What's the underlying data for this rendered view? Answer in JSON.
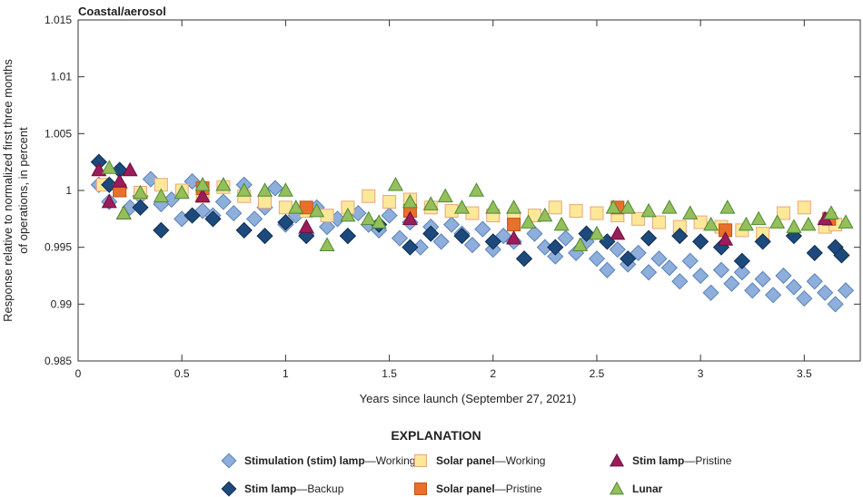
{
  "chart_data": {
    "type": "scatter",
    "title": "Coastal/aerosol",
    "xlabel": "Years since launch (September 27, 2021)",
    "ylabel": [
      "Response relative to normalized first three months",
      "of operations, in percent"
    ],
    "xlim": [
      0,
      3.77
    ],
    "ylim": [
      0.985,
      1.015
    ],
    "xticks": [
      0,
      0.5,
      1,
      1.5,
      2,
      2.5,
      3,
      3.5
    ],
    "xtick_labels": [
      "0",
      "0.5",
      "1",
      "1.5",
      "2",
      "2.5",
      "3",
      "3.5"
    ],
    "yticks": [
      0.985,
      0.99,
      0.995,
      1,
      1.005,
      1.01,
      1.015
    ],
    "ytick_labels": [
      "0.985",
      "0.99",
      "0.995",
      "1",
      "1.005",
      "1.01",
      "1.015"
    ],
    "grid": false,
    "legend_title": "EXPLANATION",
    "legend_placement": "bottom",
    "series": [
      {
        "key": "stim_working",
        "bold": "Stimulation (stim) lamp",
        "rest": "—Working",
        "marker": "diamond",
        "fill": "#8eaedb",
        "stroke": "#5b82b8",
        "points": [
          [
            0.1,
            1.0005
          ],
          [
            0.15,
            0.999
          ],
          [
            0.2,
            1.0002
          ],
          [
            0.25,
            0.9985
          ],
          [
            0.3,
            0.9995
          ],
          [
            0.35,
            1.001
          ],
          [
            0.4,
            0.9988
          ],
          [
            0.45,
            0.9992
          ],
          [
            0.5,
            0.9975
          ],
          [
            0.55,
            1.0008
          ],
          [
            0.6,
            0.9982
          ],
          [
            0.65,
            0.9978
          ],
          [
            0.7,
            0.999
          ],
          [
            0.75,
            0.998
          ],
          [
            0.8,
            1.0005
          ],
          [
            0.85,
            0.9975
          ],
          [
            0.9,
            0.9985
          ],
          [
            0.95,
            1.0002
          ],
          [
            1.0,
            0.997
          ],
          [
            1.05,
            0.9978
          ],
          [
            1.1,
            0.9962
          ],
          [
            1.15,
            0.9985
          ],
          [
            1.2,
            0.9968
          ],
          [
            1.25,
            0.9975
          ],
          [
            1.3,
            0.996
          ],
          [
            1.35,
            0.998
          ],
          [
            1.4,
            0.997
          ],
          [
            1.45,
            0.9965
          ],
          [
            1.5,
            0.9978
          ],
          [
            1.55,
            0.9958
          ],
          [
            1.6,
            0.9972
          ],
          [
            1.65,
            0.995
          ],
          [
            1.7,
            0.9968
          ],
          [
            1.75,
            0.9955
          ],
          [
            1.8,
            0.997
          ],
          [
            1.85,
            0.9962
          ],
          [
            1.9,
            0.9952
          ],
          [
            1.95,
            0.9966
          ],
          [
            2.0,
            0.9948
          ],
          [
            2.05,
            0.996
          ],
          [
            2.1,
            0.9955
          ],
          [
            2.15,
            0.994
          ],
          [
            2.2,
            0.9962
          ],
          [
            2.25,
            0.995
          ],
          [
            2.3,
            0.9942
          ],
          [
            2.35,
            0.9958
          ],
          [
            2.4,
            0.9945
          ],
          [
            2.45,
            0.9955
          ],
          [
            2.5,
            0.994
          ],
          [
            2.55,
            0.993
          ],
          [
            2.6,
            0.9948
          ],
          [
            2.65,
            0.9935
          ],
          [
            2.7,
            0.9945
          ],
          [
            2.75,
            0.9928
          ],
          [
            2.8,
            0.994
          ],
          [
            2.85,
            0.9932
          ],
          [
            2.9,
            0.992
          ],
          [
            2.95,
            0.9938
          ],
          [
            3.0,
            0.9925
          ],
          [
            3.05,
            0.991
          ],
          [
            3.1,
            0.993
          ],
          [
            3.15,
            0.9918
          ],
          [
            3.2,
            0.9928
          ],
          [
            3.25,
            0.9912
          ],
          [
            3.3,
            0.9922
          ],
          [
            3.35,
            0.9908
          ],
          [
            3.4,
            0.9925
          ],
          [
            3.45,
            0.9915
          ],
          [
            3.5,
            0.9905
          ],
          [
            3.55,
            0.992
          ],
          [
            3.6,
            0.991
          ],
          [
            3.65,
            0.99
          ],
          [
            3.7,
            0.9912
          ]
        ]
      },
      {
        "key": "solar_working",
        "bold": "Solar panel",
        "rest": "—Working",
        "marker": "square",
        "fill": "#fde89a",
        "stroke": "#e8a77a",
        "points": [
          [
            0.12,
            1.0005
          ],
          [
            0.2,
            1.0
          ],
          [
            0.3,
            0.9998
          ],
          [
            0.4,
            1.0005
          ],
          [
            0.5,
            1.0
          ],
          [
            0.6,
            0.9995
          ],
          [
            0.7,
            1.0003
          ],
          [
            0.8,
            0.9995
          ],
          [
            0.9,
            0.999
          ],
          [
            1.0,
            0.9985
          ],
          [
            1.1,
            0.9982
          ],
          [
            1.2,
            0.9978
          ],
          [
            1.3,
            0.9985
          ],
          [
            1.4,
            0.9995
          ],
          [
            1.5,
            0.999
          ],
          [
            1.6,
            0.9992
          ],
          [
            1.7,
            0.9985
          ],
          [
            1.8,
            0.9982
          ],
          [
            1.9,
            0.998
          ],
          [
            2.0,
            0.9978
          ],
          [
            2.1,
            0.9975
          ],
          [
            2.2,
            0.9978
          ],
          [
            2.3,
            0.9985
          ],
          [
            2.4,
            0.9982
          ],
          [
            2.5,
            0.998
          ],
          [
            2.6,
            0.9978
          ],
          [
            2.7,
            0.9975
          ],
          [
            2.8,
            0.9972
          ],
          [
            2.9,
            0.9968
          ],
          [
            3.0,
            0.9972
          ],
          [
            3.1,
            0.9968
          ],
          [
            3.2,
            0.9965
          ],
          [
            3.3,
            0.9962
          ],
          [
            3.4,
            0.998
          ],
          [
            3.5,
            0.9985
          ],
          [
            3.6,
            0.9968
          ],
          [
            3.65,
            0.997
          ]
        ]
      },
      {
        "key": "stim_backup",
        "bold": "Stim lamp",
        "rest": "—Backup",
        "marker": "diamond",
        "fill": "#1d4a7c",
        "stroke": "#0f2d50",
        "points": [
          [
            0.1,
            1.0025
          ],
          [
            0.15,
            1.0005
          ],
          [
            0.2,
            1.0018
          ],
          [
            0.3,
            0.9985
          ],
          [
            0.4,
            0.9965
          ],
          [
            0.55,
            0.9978
          ],
          [
            0.65,
            0.9975
          ],
          [
            0.8,
            0.9965
          ],
          [
            0.9,
            0.996
          ],
          [
            1.0,
            0.9972
          ],
          [
            1.1,
            0.996
          ],
          [
            1.3,
            0.996
          ],
          [
            1.45,
            0.997
          ],
          [
            1.6,
            0.995
          ],
          [
            1.7,
            0.9962
          ],
          [
            1.85,
            0.996
          ],
          [
            2.0,
            0.9955
          ],
          [
            2.15,
            0.994
          ],
          [
            2.3,
            0.995
          ],
          [
            2.45,
            0.9962
          ],
          [
            2.55,
            0.9955
          ],
          [
            2.65,
            0.994
          ],
          [
            2.75,
            0.9958
          ],
          [
            2.9,
            0.996
          ],
          [
            3.0,
            0.9955
          ],
          [
            3.1,
            0.995
          ],
          [
            3.2,
            0.9938
          ],
          [
            3.3,
            0.9955
          ],
          [
            3.45,
            0.996
          ],
          [
            3.55,
            0.9945
          ],
          [
            3.65,
            0.995
          ],
          [
            3.68,
            0.9943
          ]
        ]
      },
      {
        "key": "solar_pristine",
        "bold": "Solar panel",
        "rest": "—Pristine",
        "marker": "square",
        "fill": "#e8702a",
        "stroke": "#c0561a",
        "points": [
          [
            0.2,
            1.0
          ],
          [
            0.6,
            1.0002
          ],
          [
            1.1,
            0.9985
          ],
          [
            1.6,
            0.9982
          ],
          [
            2.1,
            0.997
          ],
          [
            2.6,
            0.9985
          ],
          [
            3.12,
            0.9965
          ],
          [
            3.62,
            0.9975
          ]
        ]
      },
      {
        "key": "stim_pristine",
        "bold": "Stim lamp",
        "rest": "—Pristine",
        "marker": "triangle",
        "fill": "#9c1c5a",
        "stroke": "#6d0f3d",
        "points": [
          [
            0.1,
            1.0018
          ],
          [
            0.15,
            0.999
          ],
          [
            0.2,
            1.0008
          ],
          [
            0.25,
            1.0018
          ],
          [
            0.22,
            0.998
          ],
          [
            0.6,
            0.9995
          ],
          [
            1.1,
            0.9968
          ],
          [
            1.6,
            0.9975
          ],
          [
            2.1,
            0.9958
          ],
          [
            2.6,
            0.9962
          ],
          [
            3.12,
            0.9957
          ],
          [
            3.6,
            0.9975
          ]
        ]
      },
      {
        "key": "lunar",
        "bold": "Lunar",
        "rest": "",
        "marker": "triangle",
        "fill": "#95bf5a",
        "stroke": "#4e8a35",
        "points": [
          [
            0.15,
            1.002
          ],
          [
            0.22,
            0.998
          ],
          [
            0.3,
            0.9998
          ],
          [
            0.4,
            0.9995
          ],
          [
            0.5,
            0.9998
          ],
          [
            0.6,
            1.0005
          ],
          [
            0.7,
            1.0005
          ],
          [
            0.8,
            1.0
          ],
          [
            0.9,
            1.0
          ],
          [
            1.0,
            1.0
          ],
          [
            1.05,
            0.9985
          ],
          [
            1.15,
            0.9982
          ],
          [
            1.2,
            0.9952
          ],
          [
            1.3,
            0.9978
          ],
          [
            1.4,
            0.9975
          ],
          [
            1.45,
            0.9972
          ],
          [
            1.53,
            1.0005
          ],
          [
            1.6,
            0.999
          ],
          [
            1.7,
            0.9988
          ],
          [
            1.77,
            0.9995
          ],
          [
            1.85,
            0.9985
          ],
          [
            1.92,
            1.0
          ],
          [
            2.0,
            0.9985
          ],
          [
            2.1,
            0.9985
          ],
          [
            2.17,
            0.9972
          ],
          [
            2.25,
            0.9978
          ],
          [
            2.33,
            0.997
          ],
          [
            2.42,
            0.9952
          ],
          [
            2.5,
            0.9962
          ],
          [
            2.58,
            0.9985
          ],
          [
            2.65,
            0.9985
          ],
          [
            2.75,
            0.9982
          ],
          [
            2.85,
            0.9985
          ],
          [
            2.95,
            0.998
          ],
          [
            3.05,
            0.997
          ],
          [
            3.13,
            0.9985
          ],
          [
            3.22,
            0.997
          ],
          [
            3.28,
            0.9975
          ],
          [
            3.37,
            0.9972
          ],
          [
            3.45,
            0.9968
          ],
          [
            3.52,
            0.997
          ],
          [
            3.63,
            0.998
          ],
          [
            3.7,
            0.9972
          ]
        ]
      }
    ],
    "legend_order": [
      "stim_working",
      "solar_working",
      "stim_pristine",
      "stim_backup",
      "solar_pristine",
      "lunar"
    ]
  }
}
